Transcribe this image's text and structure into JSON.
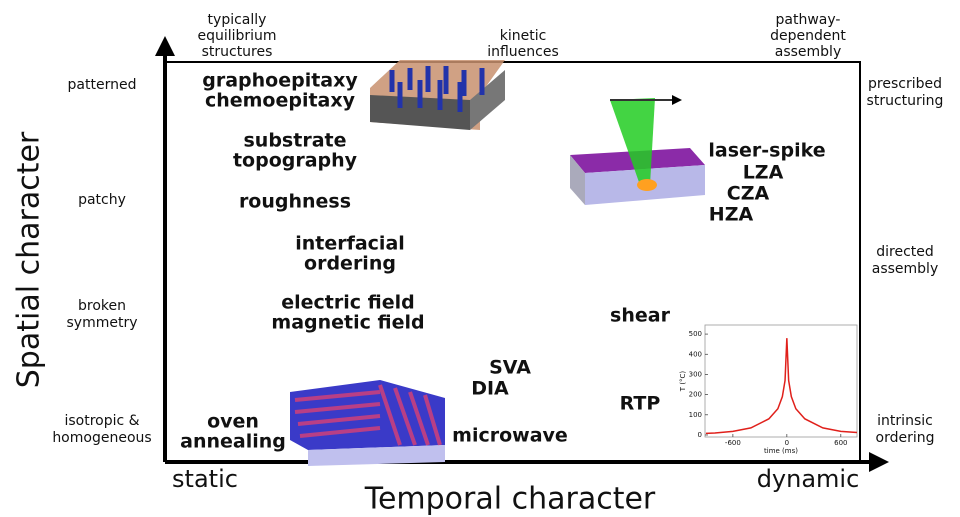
{
  "axes": {
    "x_title": "Temporal character",
    "y_title": "Spatial character",
    "x_start": "static",
    "x_end": "dynamic"
  },
  "top_labels": [
    [
      "typically",
      "equilibrium",
      "structures"
    ],
    [
      "kinetic",
      "influences"
    ],
    [
      "pathway-",
      "dependent",
      "assembly"
    ]
  ],
  "left_labels": [
    [
      "patterned"
    ],
    [
      "patchy"
    ],
    [
      "broken",
      "symmetry"
    ],
    [
      "isotropic &",
      "homogeneous"
    ]
  ],
  "right_labels": [
    [
      "prescribed",
      "structuring"
    ],
    [
      "directed",
      "assembly"
    ],
    [
      "intrinsic",
      "ordering"
    ]
  ],
  "methods": [
    [
      "graphoepitaxy",
      "chemoepitaxy"
    ],
    [
      "substrate",
      "topography"
    ],
    [
      "roughness"
    ],
    [
      "interfacial",
      "ordering"
    ],
    [
      "electric field",
      "magnetic field"
    ],
    [
      "laser-spike"
    ],
    [
      "LZA"
    ],
    [
      "CZA"
    ],
    [
      "HZA"
    ],
    [
      "shear"
    ],
    [
      "SVA"
    ],
    [
      "DIA"
    ],
    [
      "RTP"
    ],
    [
      "oven",
      "annealing"
    ],
    [
      "microwave"
    ]
  ],
  "inset": {
    "type": "line",
    "xlabel": "time (ms)",
    "ylabel": "T (°C)",
    "xlim": [
      -910,
      780
    ],
    "ylim": [
      -10,
      545
    ],
    "xticks": [
      -600,
      0,
      600
    ],
    "yticks": [
      0,
      100,
      200,
      300,
      400,
      500
    ],
    "color": "#e0201b",
    "x": [
      -900,
      -800,
      -600,
      -400,
      -200,
      -100,
      -50,
      -20,
      0,
      20,
      50,
      100,
      200,
      400,
      600,
      780
    ],
    "values": [
      8,
      10,
      18,
      35,
      80,
      130,
      190,
      270,
      480,
      270,
      190,
      130,
      80,
      35,
      18,
      12
    ]
  }
}
